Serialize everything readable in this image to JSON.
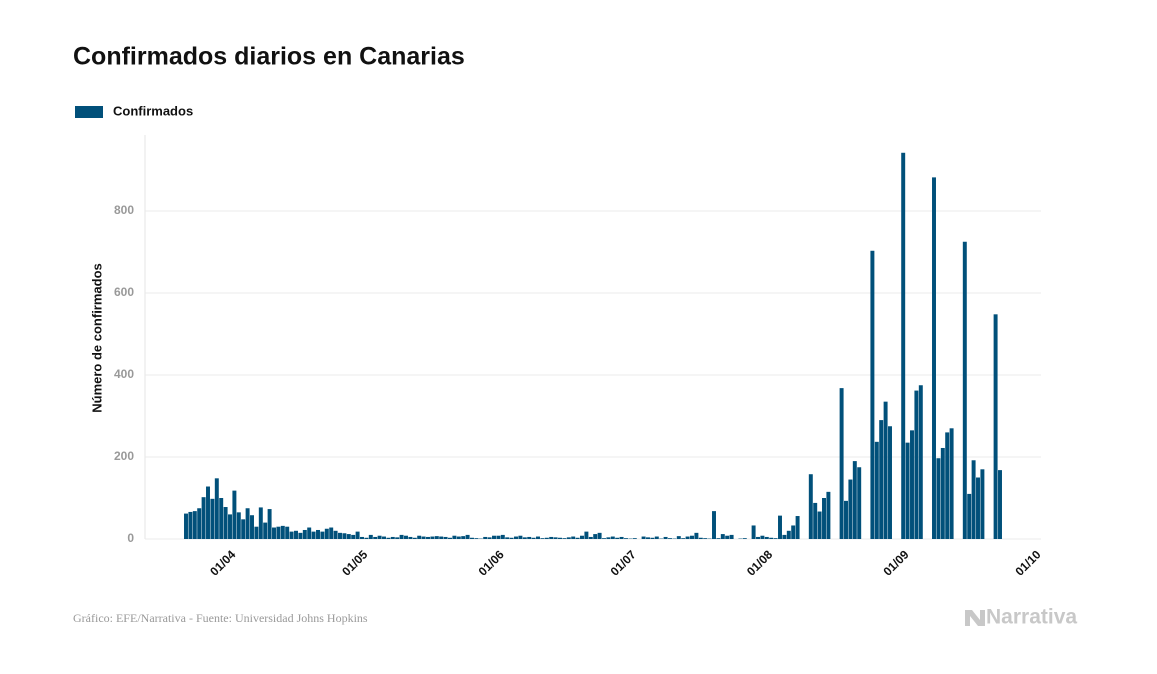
{
  "chart_data": {
    "type": "bar",
    "title": "Confirmados diarios en Canarias",
    "y_axis_label": "Número de confirmados",
    "series": [
      {
        "name": "Confirmados",
        "color": "#01507a",
        "values": [
          62,
          66,
          68,
          75,
          102,
          128,
          98,
          148,
          100,
          78,
          60,
          118,
          65,
          48,
          75,
          58,
          30,
          77,
          40,
          73,
          28,
          30,
          32,
          30,
          18,
          20,
          15,
          22,
          28,
          18,
          22,
          18,
          25,
          28,
          20,
          15,
          14,
          12,
          10,
          18,
          5,
          3,
          10,
          5,
          8,
          6,
          3,
          5,
          4,
          10,
          8,
          5,
          3,
          8,
          6,
          5,
          6,
          7,
          6,
          5,
          3,
          8,
          6,
          7,
          10,
          3,
          2,
          1,
          5,
          4,
          8,
          8,
          10,
          4,
          3,
          6,
          8,
          4,
          5,
          3,
          6,
          2,
          3,
          5,
          4,
          3,
          2,
          4,
          6,
          3,
          8,
          18,
          5,
          12,
          15,
          2,
          4,
          6,
          3,
          5,
          2,
          1,
          2,
          0,
          6,
          4,
          3,
          6,
          1,
          5,
          2,
          1,
          7,
          2,
          6,
          8,
          15,
          3,
          2,
          1,
          68,
          2,
          12,
          8,
          10,
          0,
          1,
          2,
          0,
          33,
          5,
          8,
          5,
          3,
          2,
          57,
          10,
          20,
          33,
          56,
          0,
          0,
          158,
          88,
          67,
          100,
          115,
          0,
          0,
          368,
          93,
          145,
          190,
          175,
          0,
          0,
          703,
          237,
          290,
          335,
          275,
          0,
          0,
          942,
          235,
          265,
          362,
          375,
          0,
          0,
          882,
          197,
          222,
          260,
          270,
          0,
          0,
          725,
          110,
          192,
          150,
          170,
          0,
          0,
          548,
          168,
          null,
          null,
          null,
          null,
          null,
          null,
          null,
          null
        ]
      }
    ],
    "categories": [
      null,
      null,
      null,
      null,
      null,
      null,
      null,
      null,
      null,
      null,
      "01/04",
      null,
      null,
      null,
      null,
      null,
      null,
      null,
      null,
      null,
      null,
      null,
      null,
      null,
      null,
      null,
      null,
      null,
      null,
      null,
      null,
      null,
      null,
      null,
      null,
      null,
      null,
      null,
      null,
      null,
      "01/05",
      null,
      null,
      null,
      null,
      null,
      null,
      null,
      null,
      null,
      null,
      null,
      null,
      null,
      null,
      null,
      null,
      null,
      null,
      null,
      null,
      null,
      null,
      null,
      null,
      null,
      null,
      null,
      null,
      null,
      null,
      "01/06",
      null,
      null,
      null,
      null,
      null,
      null,
      null,
      null,
      null,
      null,
      null,
      null,
      null,
      null,
      null,
      null,
      null,
      null,
      null,
      null,
      null,
      null,
      null,
      null,
      null,
      null,
      null,
      null,
      null,
      "01/07",
      null,
      null,
      null,
      null,
      null,
      null,
      null,
      null,
      null,
      null,
      null,
      null,
      null,
      null,
      null,
      null,
      null,
      null,
      null,
      null,
      null,
      null,
      null,
      null,
      null,
      null,
      null,
      null,
      null,
      null,
      "01/08",
      null,
      null,
      null,
      null,
      null,
      null,
      null,
      null,
      null,
      null,
      null,
      null,
      null,
      null,
      null,
      null,
      null,
      null,
      null,
      null,
      null,
      null,
      null,
      null,
      null,
      null,
      null,
      null,
      null,
      null,
      "01/09",
      null,
      null,
      null,
      null,
      null,
      null,
      null,
      null,
      null,
      null,
      null,
      null,
      null,
      null,
      null,
      null,
      null,
      null,
      null,
      null,
      null,
      null,
      null,
      null,
      null,
      null,
      null,
      null,
      null,
      "01/10"
    ],
    "ylim": [
      0,
      1000
    ],
    "yticks": [
      0,
      200,
      400,
      600,
      800
    ],
    "grid": true,
    "legend": "top-left",
    "source": "Gráfico: EFE/Narrativa - Fuente: Universidad Johns Hopkins",
    "logo": "Narrativa"
  }
}
